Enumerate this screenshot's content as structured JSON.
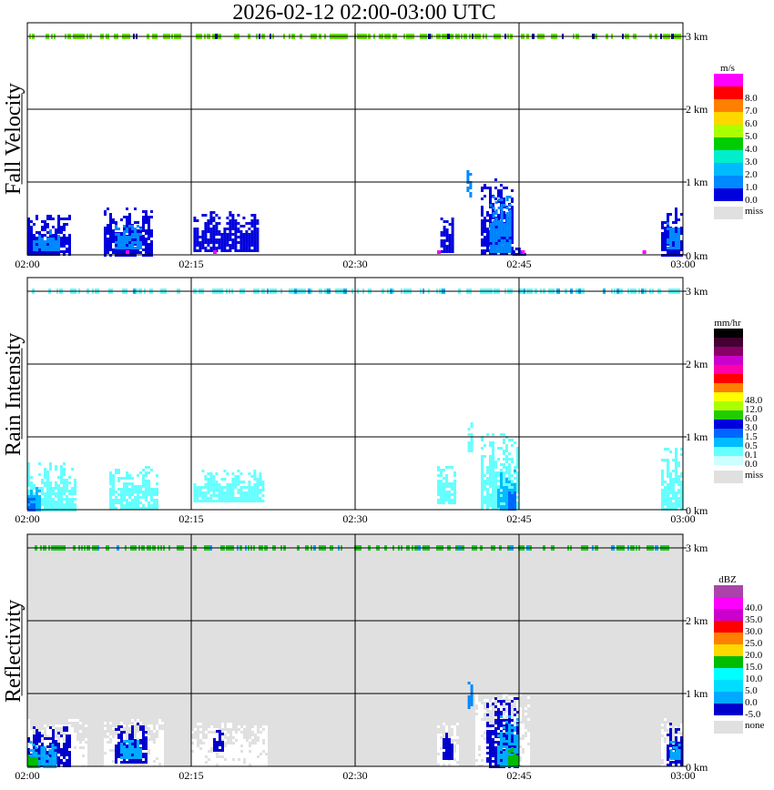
{
  "title": "2026-02-12   02:00-03:00 UTC",
  "x_ticks": [
    "02:00",
    "02:15",
    "02:30",
    "02:45",
    "03:00"
  ],
  "y_ticks": [
    "0 km",
    "1 km",
    "2 km",
    "3 km"
  ],
  "chart_data": [
    {
      "type": "heatmap",
      "ylabel": "Fall Velocity",
      "xlim": [
        "02:00",
        "03:00"
      ],
      "ylim": [
        0,
        3
      ],
      "grid": true,
      "background": "#ffffff",
      "legend": {
        "unit": "m/s",
        "levels": [
          "8.0",
          "7.0",
          "6.0",
          "5.0",
          "4.0",
          "3.0",
          "2.0",
          "1.0",
          "0.0"
        ],
        "colors": [
          "#ff00ff",
          "#ff0000",
          "#ff8000",
          "#ffd700",
          "#aaff00",
          "#00cc00",
          "#00eecc",
          "#00bbff",
          "#0088ff",
          "#0000dd"
        ],
        "miss_label": "miss"
      },
      "regions": [
        {
          "t0": 0.0,
          "t1": 4.0,
          "h0": 0.0,
          "h1": 0.55,
          "color": "#0000dd"
        },
        {
          "t0": 0.5,
          "t1": 3.0,
          "h0": 0.05,
          "h1": 0.35,
          "color": "#0088ff"
        },
        {
          "t0": 7.0,
          "t1": 11.5,
          "h0": 0.0,
          "h1": 0.65,
          "color": "#0000dd"
        },
        {
          "t0": 8.0,
          "t1": 10.5,
          "h0": 0.1,
          "h1": 0.45,
          "color": "#0088ff"
        },
        {
          "t0": 15.2,
          "t1": 21.0,
          "h0": 0.05,
          "h1": 0.6,
          "color": "#0000dd"
        },
        {
          "t0": 37.8,
          "t1": 39.0,
          "h0": 0.05,
          "h1": 0.55,
          "color": "#0000dd"
        },
        {
          "t0": 40.2,
          "t1": 40.6,
          "h0": 0.8,
          "h1": 1.2,
          "color": "#0088ff"
        },
        {
          "t0": 41.5,
          "t1": 44.5,
          "h0": 0.0,
          "h1": 1.05,
          "color": "#0000dd"
        },
        {
          "t0": 42.3,
          "t1": 44.2,
          "h0": 0.05,
          "h1": 0.85,
          "color": "#0088ff"
        },
        {
          "t0": 44.4,
          "t1": 45.5,
          "h0": 0.0,
          "h1": 0.1,
          "color": "#0000dd"
        },
        {
          "t0": 58.0,
          "t1": 60.0,
          "h0": 0.0,
          "h1": 0.65,
          "color": "#0000dd"
        },
        {
          "t0": 58.5,
          "t1": 59.7,
          "h0": 0.1,
          "h1": 0.45,
          "color": "#0088ff"
        }
      ],
      "specks": [
        {
          "t": 9.0,
          "color": "#ff00ff"
        },
        {
          "t": 17.0,
          "color": "#ff00ff"
        },
        {
          "t": 37.5,
          "color": "#ff00ff"
        },
        {
          "t": 45.2,
          "color": "#ff00ff"
        },
        {
          "t": 56.3,
          "color": "#ff00ff"
        }
      ],
      "top_band": {
        "height_km": 3.0,
        "color": "#66dd00",
        "accent": "#0000aa"
      }
    },
    {
      "type": "heatmap",
      "ylabel": "Rain Intensity",
      "xlim": [
        "02:00",
        "03:00"
      ],
      "ylim": [
        0,
        3
      ],
      "grid": true,
      "background": "#ffffff",
      "legend": {
        "unit": "mm/hr",
        "levels": [
          "48.0",
          "12.0",
          "6.0",
          "3.0",
          "1.5",
          "0.5",
          "0.1",
          "0.0"
        ],
        "colors": [
          "#000000",
          "#440033",
          "#880066",
          "#cc00cc",
          "#ff00aa",
          "#ff0000",
          "#ff8000",
          "#ffff00",
          "#aaff00",
          "#22cc00",
          "#0000dd",
          "#0066ff",
          "#00bbff",
          "#66ffff",
          "#ccffff"
        ],
        "miss_label": "miss"
      },
      "regions": [
        {
          "t0": 0.0,
          "t1": 4.5,
          "h0": 0.0,
          "h1": 0.65,
          "color": "#66ffff"
        },
        {
          "t0": 0.0,
          "t1": 1.2,
          "h0": 0.0,
          "h1": 0.35,
          "color": "#00bbff"
        },
        {
          "t0": 0.0,
          "t1": 0.7,
          "h0": 0.0,
          "h1": 0.2,
          "color": "#0066ff"
        },
        {
          "t0": 7.5,
          "t1": 12.0,
          "h0": 0.0,
          "h1": 0.6,
          "color": "#66ffff"
        },
        {
          "t0": 15.2,
          "t1": 21.5,
          "h0": 0.1,
          "h1": 0.55,
          "color": "#66ffff"
        },
        {
          "t0": 37.5,
          "t1": 39.2,
          "h0": 0.1,
          "h1": 0.6,
          "color": "#66ffff"
        },
        {
          "t0": 40.3,
          "t1": 40.6,
          "h0": 0.8,
          "h1": 1.2,
          "color": "#66ffff"
        },
        {
          "t0": 41.5,
          "t1": 45.0,
          "h0": 0.0,
          "h1": 1.05,
          "color": "#66ffff"
        },
        {
          "t0": 43.0,
          "t1": 44.6,
          "h0": 0.0,
          "h1": 0.55,
          "color": "#00bbff"
        },
        {
          "t0": 44.0,
          "t1": 44.7,
          "h0": 0.0,
          "h1": 0.25,
          "color": "#0066ff"
        },
        {
          "t0": 58.0,
          "t1": 60.0,
          "h0": 0.0,
          "h1": 0.85,
          "color": "#66ffff"
        }
      ],
      "specks": [],
      "top_band": {
        "height_km": 3.0,
        "color": "#66ffff",
        "accent": "#00bbff"
      }
    },
    {
      "type": "heatmap",
      "ylabel": "Reflectivity",
      "xlim": [
        "02:00",
        "03:00"
      ],
      "ylim": [
        0,
        3
      ],
      "grid": true,
      "background": "#e0e0e0",
      "legend": {
        "unit": "dBZ",
        "levels": [
          "40.0",
          "35.0",
          "30.0",
          "25.0",
          "20.0",
          "15.0",
          "10.0",
          "5.0",
          "0.0",
          "-5.0"
        ],
        "colors": [
          "#aa44aa",
          "#ff00ff",
          "#cc00cc",
          "#ff0000",
          "#ff8000",
          "#ffd700",
          "#00bb00",
          "#00ffff",
          "#00ddff",
          "#00aaff",
          "#0000cc"
        ],
        "miss_label": "none"
      },
      "regions": [
        {
          "t0": 0.0,
          "t1": 5.5,
          "h0": 0.0,
          "h1": 0.65,
          "color": "#ffffff"
        },
        {
          "t0": 0.0,
          "t1": 3.8,
          "h0": 0.0,
          "h1": 0.55,
          "color": "#0000cc"
        },
        {
          "t0": 0.2,
          "t1": 2.5,
          "h0": 0.0,
          "h1": 0.35,
          "color": "#00aaff"
        },
        {
          "t0": 0.0,
          "t1": 0.8,
          "h0": 0.0,
          "h1": 0.2,
          "color": "#00bb00"
        },
        {
          "t0": 7.0,
          "t1": 12.5,
          "h0": 0.0,
          "h1": 0.65,
          "color": "#ffffff"
        },
        {
          "t0": 8.0,
          "t1": 11.0,
          "h0": 0.05,
          "h1": 0.6,
          "color": "#0000cc"
        },
        {
          "t0": 8.5,
          "t1": 10.5,
          "h0": 0.1,
          "h1": 0.4,
          "color": "#00aaff"
        },
        {
          "t0": 15.0,
          "t1": 22.0,
          "h0": 0.0,
          "h1": 0.6,
          "color": "#ffffff"
        },
        {
          "t0": 17.0,
          "t1": 18.0,
          "h0": 0.2,
          "h1": 0.5,
          "color": "#0000cc"
        },
        {
          "t0": 37.5,
          "t1": 39.5,
          "h0": 0.0,
          "h1": 0.6,
          "color": "#ffffff"
        },
        {
          "t0": 38.0,
          "t1": 39.0,
          "h0": 0.1,
          "h1": 0.5,
          "color": "#0000cc"
        },
        {
          "t0": 40.3,
          "t1": 40.6,
          "h0": 0.8,
          "h1": 1.2,
          "color": "#0088ff"
        },
        {
          "t0": 41.0,
          "t1": 46.0,
          "h0": 0.0,
          "h1": 1.0,
          "color": "#ffffff"
        },
        {
          "t0": 42.0,
          "t1": 45.0,
          "h0": 0.0,
          "h1": 0.95,
          "color": "#0000cc"
        },
        {
          "t0": 43.0,
          "t1": 44.8,
          "h0": 0.0,
          "h1": 0.7,
          "color": "#00aaff"
        },
        {
          "t0": 44.0,
          "t1": 44.8,
          "h0": 0.0,
          "h1": 0.3,
          "color": "#00bb00"
        },
        {
          "t0": 58.0,
          "t1": 60.0,
          "h0": 0.0,
          "h1": 0.7,
          "color": "#ffffff"
        },
        {
          "t0": 58.5,
          "t1": 60.0,
          "h0": 0.0,
          "h1": 0.6,
          "color": "#0000cc"
        },
        {
          "t0": 58.8,
          "t1": 59.8,
          "h0": 0.1,
          "h1": 0.35,
          "color": "#00aaff"
        }
      ],
      "specks": [],
      "top_band": {
        "height_km": 3.0,
        "color": "#22cc22",
        "accent": "#00aaff"
      }
    }
  ]
}
